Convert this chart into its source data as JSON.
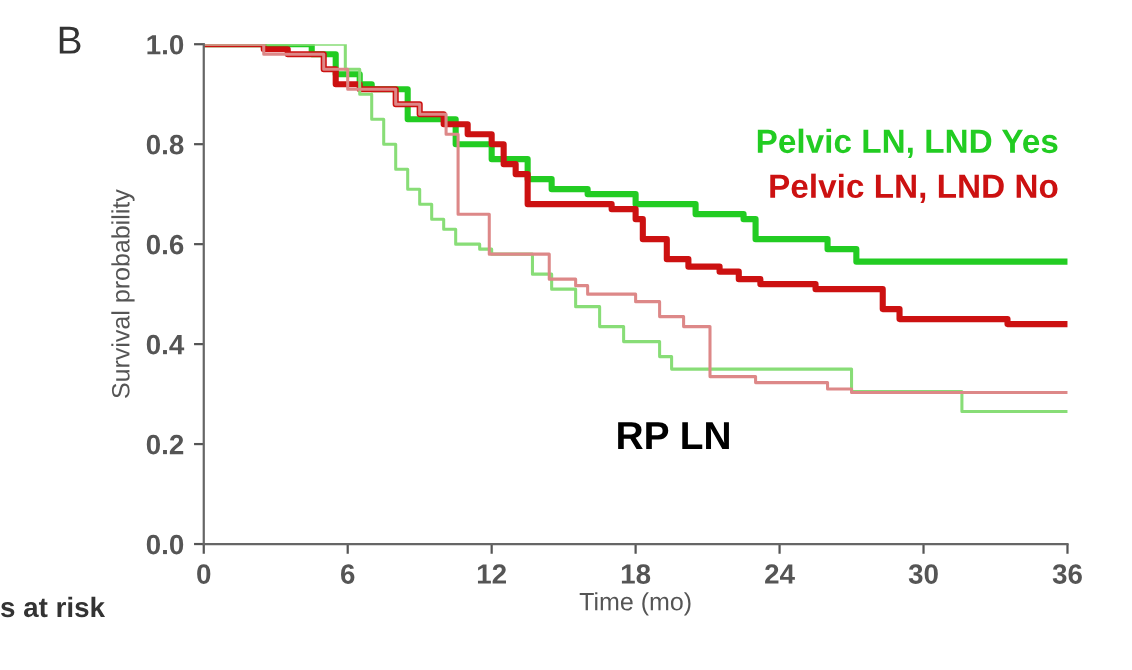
{
  "chart_data": {
    "type": "step",
    "xlabel": "Time (mo)",
    "ylabel": "Survival probability",
    "xlim": [
      0,
      36
    ],
    "xticks": [
      0,
      6,
      12,
      18,
      24,
      30,
      36
    ],
    "ylim": [
      0,
      1
    ],
    "yticks": [
      {
        "value": 0,
        "label": "0.0"
      },
      {
        "value": 0.2,
        "label": "0.2"
      },
      {
        "value": 0.4,
        "label": "0.4"
      },
      {
        "value": 0.6,
        "label": "0.6"
      },
      {
        "value": 0.8,
        "label": "0.8"
      },
      {
        "value": 1,
        "label": "1.0"
      }
    ],
    "grid": false,
    "legend": false,
    "marker": "none",
    "line_style": "solid",
    "annotations": [
      "B",
      "s at risk",
      "RP LN"
    ],
    "series": [
      {
        "name": "Pelvic LN, LND Yes",
        "color": "#22cc22",
        "x": [
          0,
          4.5,
          5.5,
          6.5,
          7,
          8.5,
          10.5,
          12,
          13.5,
          14.5,
          16,
          18,
          20.5,
          22.5,
          23,
          26,
          27.2,
          36
        ],
        "values": [
          1.0,
          0.98,
          0.94,
          0.92,
          0.91,
          0.85,
          0.8,
          0.77,
          0.73,
          0.71,
          0.7,
          0.68,
          0.66,
          0.65,
          0.61,
          0.59,
          0.565,
          0.565
        ]
      },
      {
        "name": "Pelvic LN, LND No",
        "color": "#cc1111",
        "x": [
          0,
          2.5,
          3.5,
          5,
          5.5,
          6.5,
          8,
          9,
          10,
          11,
          12,
          12.5,
          13,
          13.5,
          17,
          18,
          18.3,
          19.3,
          20.2,
          21.5,
          22.3,
          23.2,
          25.5,
          28.3,
          29,
          33.5,
          36
        ],
        "values": [
          1.0,
          0.99,
          0.98,
          0.95,
          0.92,
          0.91,
          0.88,
          0.86,
          0.84,
          0.82,
          0.8,
          0.76,
          0.74,
          0.68,
          0.67,
          0.65,
          0.61,
          0.57,
          0.555,
          0.545,
          0.53,
          0.52,
          0.51,
          0.47,
          0.45,
          0.44,
          0.44
        ]
      },
      {
        "color": "#88dd77",
        "x": [
          0,
          5.9,
          6.5,
          7,
          7.5,
          8,
          8.5,
          9,
          9.5,
          10,
          10.5,
          11.5,
          12,
          13.7,
          14.5,
          15.5,
          16.5,
          17.5,
          19,
          19.5,
          27,
          31.6,
          36
        ],
        "values": [
          1.0,
          0.95,
          0.9,
          0.85,
          0.8,
          0.75,
          0.71,
          0.68,
          0.65,
          0.63,
          0.6,
          0.59,
          0.58,
          0.54,
          0.51,
          0.475,
          0.435,
          0.405,
          0.375,
          0.35,
          0.305,
          0.265,
          0.265
        ]
      },
      {
        "color": "#dd8888",
        "x": [
          0,
          2.5,
          5,
          6,
          8,
          9,
          10.1,
          10.6,
          11.9,
          14.4,
          15.5,
          16,
          18,
          19,
          20,
          21.1,
          23,
          26,
          27,
          36
        ],
        "values": [
          1.0,
          0.98,
          0.95,
          0.91,
          0.88,
          0.86,
          0.82,
          0.66,
          0.58,
          0.53,
          0.517,
          0.5,
          0.485,
          0.455,
          0.435,
          0.335,
          0.323,
          0.31,
          0.303,
          0.303
        ]
      }
    ]
  }
}
